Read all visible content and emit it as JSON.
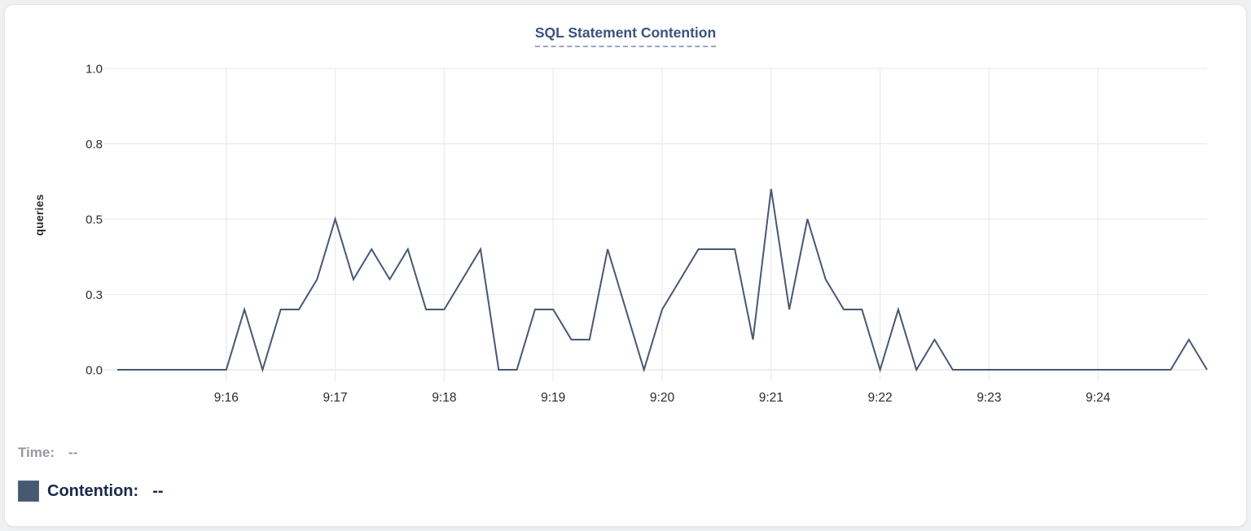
{
  "chart_data": {
    "type": "line",
    "title": "SQL Statement Contention",
    "ylabel": "queries",
    "ylim": [
      0,
      1
    ],
    "grid": true,
    "legend_position": "bottom-left",
    "y_ticks": [
      {
        "value": 0,
        "label": "0.0"
      },
      {
        "value": 0.25,
        "label": "0.3"
      },
      {
        "value": 0.5,
        "label": "0.5"
      },
      {
        "value": 0.75,
        "label": "0.8"
      },
      {
        "value": 1,
        "label": "1.0"
      }
    ],
    "x_tick_labels": [
      "9:16",
      "9:17",
      "9:18",
      "9:19",
      "9:20",
      "9:21",
      "9:22",
      "9:23",
      "9:24"
    ],
    "x_domain": [
      "9:15:00",
      "9:25:00"
    ],
    "x_interval_seconds": 10,
    "series": [
      {
        "name": "Contention",
        "color": "#475872",
        "values": [
          0,
          0,
          0,
          0,
          0,
          0,
          0,
          0.2,
          0,
          0.2,
          0.2,
          0.3,
          0.5,
          0.3,
          0.4,
          0.3,
          0.4,
          0.2,
          0.2,
          0.3,
          0.4,
          0,
          0,
          0.2,
          0.2,
          0.1,
          0.1,
          0.4,
          0.2,
          0,
          0.2,
          0.3,
          0.4,
          0.4,
          0.4,
          0.1,
          0.6,
          0.2,
          0.5,
          0.3,
          0.2,
          0.2,
          0,
          0.2,
          0,
          0.1,
          0,
          0,
          0,
          0,
          0,
          0,
          0,
          0,
          0,
          0,
          0,
          0,
          0,
          0.1,
          0
        ]
      }
    ]
  },
  "legend": {
    "time_label": "Time:",
    "time_value": "--",
    "contention_label": "Contention:",
    "contention_value": "--",
    "swatch_color": "#475872"
  },
  "colors": {
    "title": "#3b5181",
    "title_underline": "#9aa4c6",
    "line": "#475872",
    "gridline": "#ececec",
    "axis_line": "#e2e2e2",
    "tick_text": "#2b2b2b",
    "hover_text": "#94999f",
    "legend_text": "#1b294d",
    "card_background": "#ffffff"
  }
}
